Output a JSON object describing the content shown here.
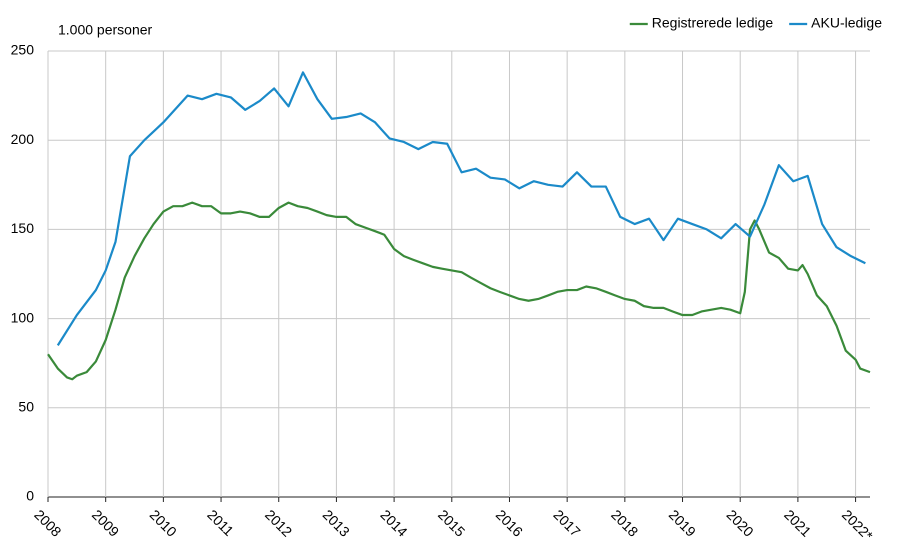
{
  "chart_data": {
    "type": "line",
    "y_axis_label": "1.000 personer",
    "xlim": [
      2008,
      2022.25
    ],
    "ylim": [
      0,
      250
    ],
    "xticks": [
      2008,
      2009,
      2010,
      2011,
      2012,
      2013,
      2014,
      2015,
      2016,
      2017,
      2018,
      2019,
      2020,
      2021,
      {
        "value": 2022,
        "label": "2022*"
      }
    ],
    "yticks": [
      0,
      50,
      100,
      150,
      200,
      250
    ],
    "grid": true,
    "legend": "top-right",
    "series": [
      {
        "name": "Registrerede ledige",
        "color": "#3a8a3a",
        "x": [
          2008,
          2008.17,
          2008.33,
          2008.42,
          2008.5,
          2008.67,
          2008.83,
          2009,
          2009.17,
          2009.33,
          2009.5,
          2009.67,
          2009.83,
          2010,
          2010.17,
          2010.33,
          2010.5,
          2010.67,
          2010.83,
          2011,
          2011.17,
          2011.33,
          2011.5,
          2011.67,
          2011.83,
          2012,
          2012.17,
          2012.33,
          2012.5,
          2012.67,
          2012.83,
          2013,
          2013.17,
          2013.33,
          2013.5,
          2013.67,
          2013.83,
          2014,
          2014.17,
          2014.33,
          2014.5,
          2014.67,
          2014.83,
          2015,
          2015.17,
          2015.33,
          2015.5,
          2015.67,
          2015.83,
          2016,
          2016.17,
          2016.33,
          2016.5,
          2016.67,
          2016.83,
          2017,
          2017.17,
          2017.33,
          2017.5,
          2017.67,
          2017.83,
          2018,
          2018.17,
          2018.33,
          2018.5,
          2018.67,
          2018.83,
          2019,
          2019.17,
          2019.33,
          2019.5,
          2019.67,
          2019.83,
          2020,
          2020.08,
          2020.17,
          2020.25,
          2020.33,
          2020.5,
          2020.67,
          2020.83,
          2021,
          2021.08,
          2021.17,
          2021.33,
          2021.5,
          2021.67,
          2021.83,
          2022,
          2022.08,
          2022.25
        ],
        "values": [
          80,
          72,
          67,
          66,
          68,
          70,
          76,
          88,
          105,
          123,
          135,
          145,
          153,
          160,
          163,
          163,
          165,
          163,
          163,
          159,
          159,
          160,
          159,
          157,
          157,
          162,
          165,
          163,
          162,
          160,
          158,
          157,
          157,
          153,
          151,
          149,
          147,
          139,
          135,
          133,
          131,
          129,
          128,
          127,
          126,
          123,
          120,
          117,
          115,
          113,
          111,
          110,
          111,
          113,
          115,
          116,
          116,
          118,
          117,
          115,
          113,
          111,
          110,
          107,
          106,
          106,
          104,
          102,
          102,
          104,
          105,
          106,
          105,
          103,
          115,
          150,
          155,
          150,
          137,
          134,
          128,
          127,
          130,
          125,
          113,
          107,
          96,
          82,
          77,
          72,
          70
        ]
      },
      {
        "name": "AKU-ledige",
        "color": "#1b8ac9",
        "x": [
          2008.17,
          2008.5,
          2008.83,
          2009,
          2009.17,
          2009.42,
          2009.67,
          2010,
          2010.42,
          2010.67,
          2010.92,
          2011.17,
          2011.42,
          2011.67,
          2011.92,
          2012.17,
          2012.42,
          2012.67,
          2012.92,
          2013.17,
          2013.42,
          2013.67,
          2013.92,
          2014.17,
          2014.42,
          2014.67,
          2014.92,
          2015.17,
          2015.42,
          2015.67,
          2015.92,
          2016.17,
          2016.42,
          2016.67,
          2016.92,
          2017.17,
          2017.42,
          2017.67,
          2017.92,
          2018.17,
          2018.42,
          2018.67,
          2018.92,
          2019.17,
          2019.42,
          2019.67,
          2019.92,
          2020.17,
          2020.42,
          2020.67,
          2020.92,
          2021.17,
          2021.42,
          2021.67,
          2021.92,
          2022.17
        ],
        "values": [
          85,
          102,
          116,
          127,
          143,
          191,
          200,
          210,
          225,
          223,
          226,
          224,
          217,
          222,
          229,
          219,
          238,
          223,
          212,
          213,
          215,
          210,
          201,
          199,
          195,
          199,
          198,
          182,
          184,
          179,
          178,
          173,
          177,
          175,
          174,
          182,
          174,
          174,
          157,
          153,
          156,
          144,
          156,
          153,
          150,
          145,
          153,
          146,
          164,
          186,
          177,
          180,
          153,
          140,
          135,
          131
        ]
      }
    ]
  }
}
